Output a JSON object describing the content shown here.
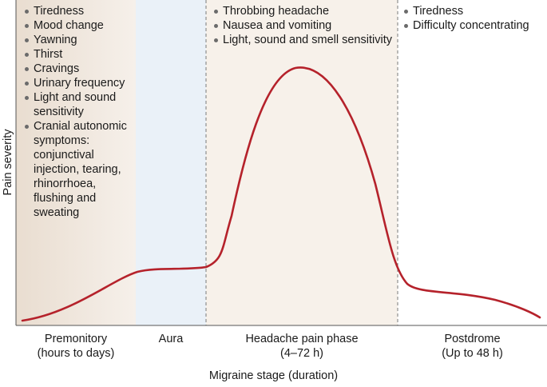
{
  "axes": {
    "y_label": "Pain severity",
    "x_label": "Migraine stage (duration)"
  },
  "stages": [
    {
      "id": "premonitory",
      "name": "Premonitory",
      "duration": "(hours to days)",
      "symptoms": [
        "Tiredness",
        "Mood change",
        "Yawning",
        "Thirst",
        "Cravings",
        "Urinary frequency",
        "Light and sound sensitivity",
        "Cranial autonomic symptoms: conjunctival injection, tearing, rhinorrhoea, flushing and sweating"
      ]
    },
    {
      "id": "aura",
      "name": "Aura",
      "duration": "",
      "symptoms": []
    },
    {
      "id": "headache",
      "name": "Headache pain phase",
      "duration": "(4–72 h)",
      "symptoms": [
        "Throbbing headache",
        "Nausea and vomiting",
        "Light, sound and smell sensitivity"
      ]
    },
    {
      "id": "postdrome",
      "name": "Postdrome",
      "duration": "(Up to 48 h)",
      "symptoms": [
        "Tiredness",
        "Difficulty concentrating"
      ]
    }
  ],
  "colors": {
    "curve": "#b5222b",
    "premonitory_fill_start": "#e9ddd0",
    "premonitory_fill_end": "#f6f0ea",
    "aura_fill": "#eaf1f8",
    "headache_fill": "#f7f1ea",
    "axis": "#555555",
    "divider": "#7a7a7a"
  }
}
